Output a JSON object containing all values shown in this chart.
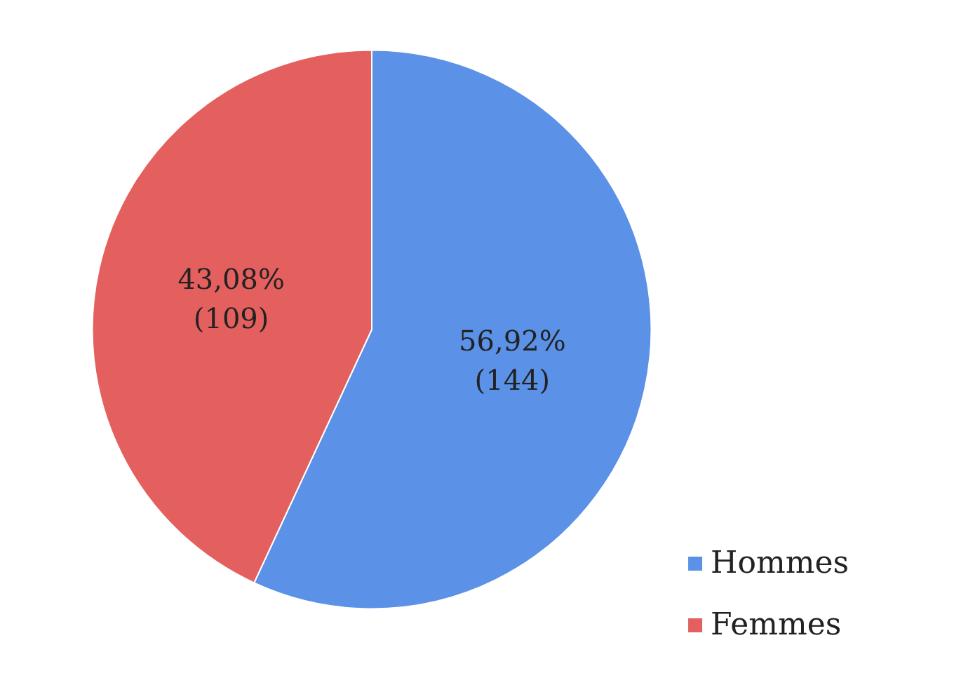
{
  "chart_data": {
    "type": "pie",
    "categories": [
      "Hommes",
      "Femmes"
    ],
    "values": [
      144,
      109
    ],
    "colors": [
      "#5b91e6",
      "#e3605f"
    ],
    "value_labels": [
      "56,92%\n(144)",
      "43,08%\n(109)"
    ],
    "legend": "bottom right"
  }
}
